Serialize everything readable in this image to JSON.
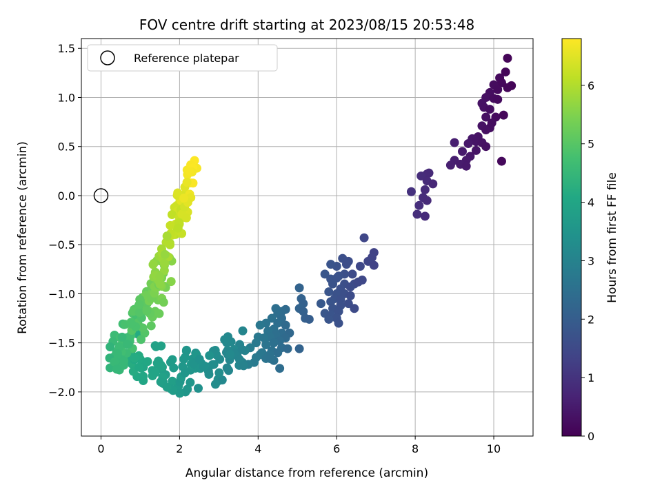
{
  "chart_data": {
    "type": "scatter",
    "title": "FOV centre drift starting at 2023/08/15 20:53:48",
    "xlabel": "Angular distance from reference (arcmin)",
    "ylabel": "Rotation from reference (arcmin)",
    "xlim": [
      -0.5,
      11.0
    ],
    "ylim": [
      -2.45,
      1.6
    ],
    "x_ticks": [
      0,
      2,
      4,
      6,
      8,
      10
    ],
    "x_tick_labels": [
      "0",
      "2",
      "4",
      "6",
      "8",
      "10"
    ],
    "y_ticks": [
      -2.0,
      -1.5,
      -1.0,
      -0.5,
      0.0,
      0.5,
      1.0,
      1.5
    ],
    "y_tick_labels": [
      "−2.0",
      "−1.5",
      "−1.0",
      "−0.5",
      "0.0",
      "0.5",
      "1.0",
      "1.5"
    ],
    "grid": true,
    "colormap": "viridis",
    "colorbar": {
      "label": "Hours from first FF file",
      "min": 0,
      "max": 6.8,
      "ticks": [
        0,
        1,
        2,
        3,
        4,
        5,
        6
      ],
      "tick_labels": [
        "0",
        "1",
        "2",
        "3",
        "4",
        "5",
        "6"
      ]
    },
    "legend": {
      "placement": "top-left",
      "entries": [
        "Reference platepar"
      ]
    },
    "reference_point": {
      "x": 0.0,
      "y": 0.0,
      "label": "Reference platepar"
    },
    "series": [
      {
        "points": [
          [
            10.35,
            1.4
          ],
          [
            10.15,
            1.2
          ],
          [
            10.3,
            1.26
          ],
          [
            10.2,
            1.15
          ],
          [
            10.0,
            1.13
          ],
          [
            10.45,
            1.12
          ],
          [
            10.35,
            1.1
          ],
          [
            9.9,
            1.05
          ],
          [
            10.1,
            1.08
          ],
          [
            9.8,
            1.0
          ],
          [
            10.0,
            0.99
          ],
          [
            9.7,
            0.94
          ],
          [
            10.1,
            0.98
          ],
          [
            9.75,
            0.9
          ],
          [
            9.9,
            0.88
          ],
          [
            10.05,
            0.8
          ],
          [
            9.8,
            0.8
          ],
          [
            10.25,
            0.82
          ],
          [
            9.95,
            0.74
          ],
          [
            9.7,
            0.71
          ],
          [
            9.9,
            0.69
          ],
          [
            9.8,
            0.67
          ],
          [
            9.6,
            0.6
          ],
          [
            9.45,
            0.58
          ],
          [
            9.55,
            0.55
          ],
          [
            9.35,
            0.53
          ],
          [
            9.7,
            0.54
          ],
          [
            9.8,
            0.5
          ],
          [
            9.2,
            0.45
          ],
          [
            9.0,
            0.54
          ],
          [
            9.4,
            0.4
          ],
          [
            9.55,
            0.46
          ],
          [
            9.3,
            0.36
          ],
          [
            9.0,
            0.36
          ],
          [
            8.9,
            0.31
          ],
          [
            9.15,
            0.32
          ],
          [
            9.3,
            0.3
          ],
          [
            10.2,
            0.35
          ],
          [
            8.3,
            0.22
          ],
          [
            8.35,
            0.23
          ],
          [
            8.15,
            0.2
          ],
          [
            8.3,
            0.15
          ],
          [
            8.45,
            0.12
          ],
          [
            8.25,
            0.06
          ],
          [
            7.9,
            0.04
          ],
          [
            8.2,
            -0.02
          ],
          [
            8.3,
            -0.05
          ],
          [
            8.1,
            -0.1
          ],
          [
            8.05,
            -0.19
          ],
          [
            8.25,
            -0.21
          ],
          [
            6.7,
            -0.43
          ],
          [
            6.95,
            -0.58
          ],
          [
            6.9,
            -0.63
          ],
          [
            6.8,
            -0.67
          ],
          [
            6.95,
            -0.71
          ],
          [
            6.6,
            -0.72
          ],
          [
            6.3,
            -0.67
          ],
          [
            6.15,
            -0.64
          ],
          [
            6.25,
            -0.7
          ],
          [
            6.0,
            -0.72
          ],
          [
            5.85,
            -0.7
          ],
          [
            6.4,
            -0.8
          ],
          [
            6.2,
            -0.8
          ],
          [
            6.05,
            -0.82
          ],
          [
            5.7,
            -0.8
          ],
          [
            5.85,
            -0.85
          ],
          [
            6.0,
            -0.84
          ],
          [
            6.45,
            -0.9
          ],
          [
            6.55,
            -0.88
          ],
          [
            6.65,
            -0.86
          ],
          [
            6.2,
            -0.9
          ],
          [
            6.35,
            -0.93
          ],
          [
            6.1,
            -0.95
          ],
          [
            5.9,
            -0.9
          ],
          [
            5.8,
            -0.98
          ],
          [
            6.0,
            -1.0
          ],
          [
            6.2,
            -1.0
          ],
          [
            6.35,
            -1.02
          ],
          [
            5.95,
            -1.05
          ],
          [
            6.1,
            -1.06
          ],
          [
            5.85,
            -1.08
          ],
          [
            6.3,
            -1.1
          ],
          [
            6.1,
            -1.12
          ],
          [
            6.45,
            -1.15
          ],
          [
            5.9,
            -1.15
          ],
          [
            6.05,
            -1.18
          ],
          [
            5.7,
            -1.2
          ],
          [
            5.85,
            -1.22
          ],
          [
            6.0,
            -1.25
          ],
          [
            5.8,
            -1.26
          ],
          [
            6.05,
            -1.3
          ],
          [
            5.6,
            -1.1
          ],
          [
            5.05,
            -0.94
          ],
          [
            5.1,
            -1.05
          ],
          [
            5.15,
            -1.1
          ],
          [
            5.05,
            -1.15
          ],
          [
            5.15,
            -1.18
          ],
          [
            5.2,
            -1.25
          ],
          [
            5.3,
            -1.26
          ],
          [
            4.7,
            -1.16
          ],
          [
            4.6,
            -1.18
          ],
          [
            4.45,
            -1.15
          ],
          [
            4.5,
            -1.2
          ],
          [
            4.6,
            -1.25
          ],
          [
            4.35,
            -1.25
          ],
          [
            4.2,
            -1.3
          ],
          [
            4.05,
            -1.32
          ],
          [
            4.5,
            -1.3
          ],
          [
            4.7,
            -1.32
          ],
          [
            4.4,
            -1.36
          ],
          [
            4.25,
            -1.38
          ],
          [
            4.6,
            -1.4
          ],
          [
            4.8,
            -1.4
          ],
          [
            4.45,
            -1.42
          ],
          [
            4.3,
            -1.44
          ],
          [
            4.7,
            -1.45
          ],
          [
            4.55,
            -1.48
          ],
          [
            4.4,
            -1.5
          ],
          [
            4.2,
            -1.52
          ],
          [
            4.6,
            -1.55
          ],
          [
            4.75,
            -1.56
          ],
          [
            4.35,
            -1.58
          ],
          [
            4.1,
            -1.6
          ],
          [
            4.5,
            -1.6
          ],
          [
            4.3,
            -1.62
          ],
          [
            4.05,
            -1.62
          ],
          [
            3.95,
            -1.65
          ],
          [
            4.2,
            -1.66
          ],
          [
            4.4,
            -1.68
          ],
          [
            3.9,
            -1.7
          ],
          [
            3.75,
            -1.72
          ],
          [
            3.6,
            -1.7
          ],
          [
            4.0,
            -1.44
          ],
          [
            3.95,
            -1.5
          ],
          [
            3.8,
            -1.55
          ],
          [
            4.15,
            -1.45
          ],
          [
            4.55,
            -1.76
          ],
          [
            5.05,
            -1.56
          ],
          [
            4.3,
            -1.66
          ]
        ]
      }
    ]
  }
}
